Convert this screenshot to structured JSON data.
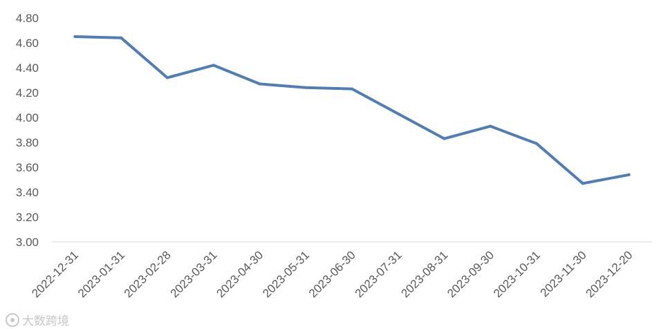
{
  "chart_data": {
    "type": "line",
    "categories": [
      "2022-12-31",
      "2023-01-31",
      "2023-02-28",
      "2023-03-31",
      "2023-04-30",
      "2023-05-31",
      "2023-06-30",
      "2023-07-31",
      "2023-08-31",
      "2023-09-30",
      "2023-10-31",
      "2023-11-30",
      "2023-12-20"
    ],
    "series": [
      {
        "values": [
          4.65,
          4.64,
          4.32,
          4.42,
          4.27,
          4.24,
          4.23,
          4.03,
          3.83,
          3.93,
          3.79,
          3.47,
          3.54
        ]
      }
    ],
    "y_ticks": [
      "3.00",
      "3.20",
      "3.40",
      "3.60",
      "3.80",
      "4.00",
      "4.20",
      "4.40",
      "4.60",
      "4.80"
    ],
    "ylim": [
      3.0,
      4.8
    ],
    "grid": false,
    "line_color": "#4F7DB8",
    "axis_color": "#D9D9D9",
    "tick_label_color": "#595959"
  },
  "watermark": {
    "text": "大数跨境"
  }
}
